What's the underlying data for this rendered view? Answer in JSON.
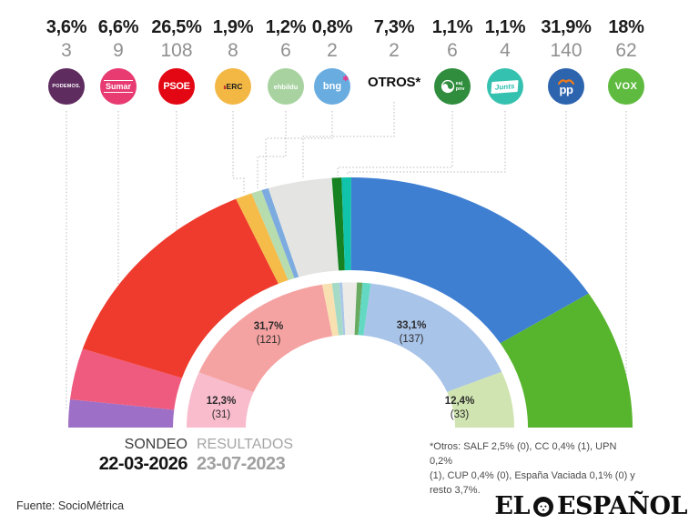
{
  "header": {
    "parties": [
      {
        "id": "podemos",
        "name": "Podemos",
        "pct_label": "3,6%",
        "seats_label": "3",
        "logo": {
          "type": "circle",
          "bg": "#5f2c60",
          "text": "PODEMOS.",
          "style": "podemos"
        }
      },
      {
        "id": "sumar",
        "name": "Sumar",
        "pct_label": "6,6%",
        "seats_label": "9",
        "logo": {
          "type": "circle",
          "bg": "#e73b72",
          "text": "Sumar",
          "style": "sumar"
        }
      },
      {
        "id": "psoe",
        "name": "PSOE",
        "pct_label": "26,5%",
        "seats_label": "108",
        "logo": {
          "type": "circle",
          "bg": "#e30613",
          "text": "PSOE",
          "style": "psoe"
        }
      },
      {
        "id": "erc",
        "name": "ERC",
        "pct_label": "1,9%",
        "seats_label": "8",
        "logo": {
          "type": "circle",
          "bg": "#f3b844",
          "text": "ERC",
          "style": "erc"
        }
      },
      {
        "id": "ehbildu",
        "name": "EH Bildu",
        "pct_label": "1,2%",
        "seats_label": "6",
        "logo": {
          "type": "circle",
          "bg": "#a8d3a0",
          "text": "ehbildu",
          "style": "ehbildu"
        }
      },
      {
        "id": "bng",
        "name": "BNG",
        "pct_label": "0,8%",
        "seats_label": "2",
        "logo": {
          "type": "circle",
          "bg": "#69ace0",
          "text": "bng",
          "style": "bng"
        }
      },
      {
        "id": "otros",
        "name": "Otros",
        "pct_label": "7,3%",
        "seats_label": "2",
        "logo": {
          "type": "text",
          "text": "OTROS*",
          "style": "otros"
        }
      },
      {
        "id": "eajpnv",
        "name": "EAJ-PNV",
        "pct_label": "1,1%",
        "seats_label": "6",
        "logo": {
          "type": "circle",
          "bg": "#2f8d3d",
          "text": "eaj pnv",
          "style": "pnv"
        }
      },
      {
        "id": "junts",
        "name": "Junts",
        "pct_label": "1,1%",
        "seats_label": "4",
        "logo": {
          "type": "circle",
          "bg": "#35c1af",
          "text": "Junts",
          "style": "junts"
        }
      },
      {
        "id": "pp",
        "name": "PP",
        "pct_label": "31,9%",
        "seats_label": "140",
        "logo": {
          "type": "circle",
          "bg": "#2c64ae",
          "text": "pp",
          "style": "pp"
        }
      },
      {
        "id": "vox",
        "name": "VOX",
        "pct_label": "18%",
        "seats_label": "62",
        "logo": {
          "type": "circle",
          "bg": "#5fbb3f",
          "text": "VOX",
          "style": "vox"
        }
      }
    ]
  },
  "chart_data": {
    "type": "hemicycle-donut",
    "title": "Sondeo electoral vs resultados (España)",
    "rings": [
      {
        "name": "sondeo-2026",
        "label": "SONDEO 22-03-2026",
        "series": [
          {
            "id": "podemos",
            "party": "Podemos",
            "pct": 3.6,
            "seats": 3,
            "color": "#9e6fc6"
          },
          {
            "id": "sumar",
            "party": "Sumar",
            "pct": 6.6,
            "seats": 9,
            "color": "#ef5b7f"
          },
          {
            "id": "psoe",
            "party": "PSOE",
            "pct": 26.5,
            "seats": 108,
            "color": "#ef3b2d"
          },
          {
            "id": "erc",
            "party": "ERC",
            "pct": 1.9,
            "seats": 8,
            "color": "#f5bc4a"
          },
          {
            "id": "ehbildu",
            "party": "EH Bildu",
            "pct": 1.2,
            "seats": 6,
            "color": "#b7dcae"
          },
          {
            "id": "bng",
            "party": "BNG",
            "pct": 0.8,
            "seats": 2,
            "color": "#7cabdf"
          },
          {
            "id": "otros",
            "party": "Otros",
            "pct": 7.3,
            "seats": 2,
            "color": "#e4e4e2"
          },
          {
            "id": "eajpnv",
            "party": "EAJ-PNV",
            "pct": 1.1,
            "seats": 6,
            "color": "#178222"
          },
          {
            "id": "junts",
            "party": "Junts",
            "pct": 1.1,
            "seats": 4,
            "color": "#12c3ab"
          },
          {
            "id": "pp",
            "party": "PP",
            "pct": 31.9,
            "seats": 140,
            "color": "#3f7fd2"
          },
          {
            "id": "vox",
            "party": "VOX",
            "pct": 18,
            "seats": 62,
            "color": "#57b42d"
          }
        ]
      },
      {
        "name": "resultados-2023",
        "label": "RESULTADOS 23-07-2023",
        "series": [
          {
            "id": "sumar",
            "party": "Sumar",
            "pct": 12.3,
            "seats": 31,
            "color": "#f8bccd",
            "label_pct": "12,3%",
            "label_seats": "(31)"
          },
          {
            "id": "psoe",
            "party": "PSOE",
            "pct": 31.7,
            "seats": 121,
            "color": "#f5a3a2",
            "label_pct": "31,7%",
            "label_seats": "(121)"
          },
          {
            "id": "erc",
            "party": "ERC",
            "pct": 1.9,
            "color": "#f8e0b0"
          },
          {
            "id": "ehbildu",
            "party": "EH Bildu",
            "pct": 1.4,
            "color": "#a5dbc6"
          },
          {
            "id": "bng",
            "party": "BNG",
            "pct": 0.6,
            "color": "#aac7e8"
          },
          {
            "id": "otros",
            "party": "Otros",
            "pct": 2.8,
            "color": "#ecebe7"
          },
          {
            "id": "eajpnv",
            "party": "EAJ-PNV",
            "pct": 1.1,
            "color": "#68aa60"
          },
          {
            "id": "junts",
            "party": "Junts",
            "pct": 1.6,
            "color": "#63d9c4"
          },
          {
            "id": "pp",
            "party": "PP",
            "pct": 33.1,
            "seats": 137,
            "color": "#a9c4e9",
            "label_pct": "33,1%",
            "label_seats": "(137)"
          },
          {
            "id": "vox",
            "party": "VOX",
            "pct": 12.4,
            "seats": 33,
            "color": "#cfe4b0",
            "label_pct": "12,4%",
            "label_seats": "(33)"
          }
        ]
      }
    ],
    "layout": {
      "half_circle": true,
      "total_angle_deg": 180,
      "leader_lines": "dotted-gray"
    }
  },
  "legend": {
    "sondeo_label": "SONDEO",
    "sondeo_date": "22-03-2026",
    "resultados_label": "RESULTADOS",
    "resultados_date": "23-07-2023"
  },
  "footnote": {
    "lines": [
      "*Otros: SALF 2,5% (0), CC 0,4% (1), UPN 0,2%",
      "(1), CUP 0,4% (0), España Vaciada 0,1% (0) y",
      "resto 3,7%."
    ]
  },
  "source": "Fuente: SocioMétrica",
  "brand": {
    "part1": "EL",
    "part2": "ESPAÑOL"
  }
}
